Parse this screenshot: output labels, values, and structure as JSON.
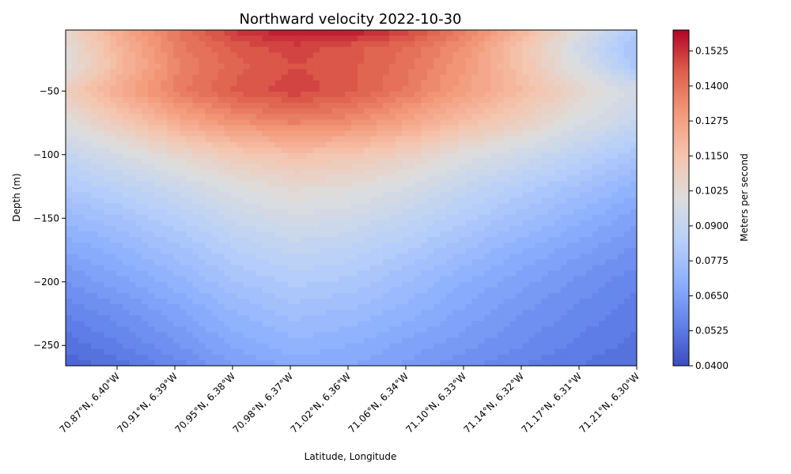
{
  "chart_data": {
    "type": "heatmap",
    "title": "Northward velocity 2022-10-30",
    "xlabel": "Latitude, Longitude",
    "ylabel": "Depth (m)",
    "colorbar_label": "Meters per second",
    "colormap": "coolwarm",
    "ylim": [
      -266,
      -2
    ],
    "y_ticks": [
      -50,
      -100,
      -150,
      -200,
      -250
    ],
    "y_tick_labels": [
      "−50",
      "−100",
      "−150",
      "−200",
      "−250"
    ],
    "x_tick_labels": [
      "70.87°N, 6.40°W",
      "70.91°N, 6.39°W",
      "70.95°N, 6.38°W",
      "70.98°N, 6.37°W",
      "71.02°N, 6.36°W",
      "71.06°N, 6.34°W",
      "71.10°N, 6.33°W",
      "71.14°N, 6.32°W",
      "71.17°N, 6.31°W",
      "71.21°N, 6.30°W"
    ],
    "colorbar_range": [
      0.04,
      0.16
    ],
    "colorbar_ticks": [
      0.04,
      0.0525,
      0.065,
      0.0775,
      0.09,
      0.1025,
      0.115,
      0.1275,
      0.14,
      0.1525
    ],
    "colorbar_tick_labels": [
      "0.0400",
      "0.0525",
      "0.0650",
      "0.0775",
      "0.0900",
      "0.1025",
      "0.1150",
      "0.1275",
      "0.1400",
      "0.1525"
    ],
    "depths": [
      -2,
      -15,
      -30,
      -50,
      -75,
      -100,
      -125,
      -150,
      -175,
      -200,
      -225,
      -250,
      -266
    ],
    "x_positions": [
      0,
      1,
      2,
      3,
      4,
      5,
      6,
      7,
      8,
      9,
      10
    ],
    "values": [
      [
        0.105,
        0.125,
        0.14,
        0.152,
        0.158,
        0.158,
        0.15,
        0.138,
        0.12,
        0.1,
        0.082
      ],
      [
        0.102,
        0.122,
        0.138,
        0.146,
        0.15,
        0.146,
        0.142,
        0.132,
        0.115,
        0.095,
        0.078
      ],
      [
        0.1,
        0.12,
        0.136,
        0.144,
        0.148,
        0.146,
        0.14,
        0.13,
        0.115,
        0.098,
        0.08
      ],
      [
        0.11,
        0.125,
        0.138,
        0.146,
        0.15,
        0.146,
        0.138,
        0.128,
        0.118,
        0.105,
        0.095
      ],
      [
        0.1,
        0.112,
        0.124,
        0.132,
        0.136,
        0.133,
        0.126,
        0.117,
        0.108,
        0.098,
        0.09
      ],
      [
        0.09,
        0.097,
        0.105,
        0.112,
        0.116,
        0.114,
        0.108,
        0.1,
        0.094,
        0.087,
        0.08
      ],
      [
        0.082,
        0.087,
        0.093,
        0.1,
        0.104,
        0.102,
        0.097,
        0.09,
        0.084,
        0.078,
        0.072
      ],
      [
        0.074,
        0.079,
        0.085,
        0.092,
        0.096,
        0.094,
        0.089,
        0.083,
        0.077,
        0.071,
        0.065
      ],
      [
        0.067,
        0.072,
        0.078,
        0.085,
        0.089,
        0.087,
        0.082,
        0.076,
        0.07,
        0.065,
        0.06
      ],
      [
        0.061,
        0.066,
        0.072,
        0.079,
        0.083,
        0.081,
        0.076,
        0.07,
        0.065,
        0.06,
        0.056
      ],
      [
        0.055,
        0.06,
        0.066,
        0.073,
        0.077,
        0.075,
        0.071,
        0.066,
        0.061,
        0.057,
        0.053
      ],
      [
        0.05,
        0.055,
        0.061,
        0.068,
        0.072,
        0.07,
        0.066,
        0.062,
        0.058,
        0.054,
        0.051
      ],
      [
        0.046,
        0.051,
        0.057,
        0.064,
        0.068,
        0.067,
        0.063,
        0.059,
        0.055,
        0.052,
        0.049
      ]
    ]
  }
}
